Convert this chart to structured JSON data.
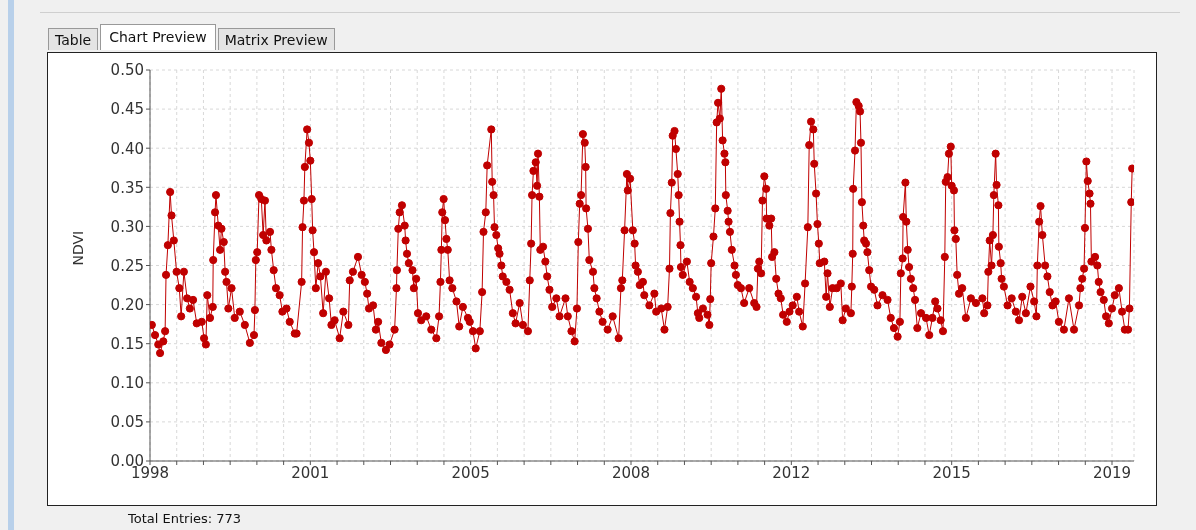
{
  "chart_data": {
    "type": "line",
    "ylabel": "NDVI",
    "annotations": [
      "Table",
      "Chart Preview",
      "Matrix Preview",
      "Total Entries: 773"
    ],
    "xlim": [
      1998,
      2019.48
    ],
    "xticks": [
      {
        "value": 1998,
        "label": "1998"
      },
      {
        "value": 1998.5833,
        "label": null
      },
      {
        "value": 1999.1667,
        "label": null
      },
      {
        "value": 1999.75,
        "label": null
      },
      {
        "value": 2000.3333,
        "label": null
      },
      {
        "value": 2000.9167,
        "label": null
      },
      {
        "value": 2001.5,
        "label": "2001"
      },
      {
        "value": 2002.0833,
        "label": null
      },
      {
        "value": 2002.6667,
        "label": null
      },
      {
        "value": 2003.25,
        "label": null
      },
      {
        "value": 2003.8333,
        "label": null
      },
      {
        "value": 2004.4167,
        "label": null
      },
      {
        "value": 2005,
        "label": "2005"
      },
      {
        "value": 2005.5833,
        "label": null
      },
      {
        "value": 2006.1667,
        "label": null
      },
      {
        "value": 2006.75,
        "label": null
      },
      {
        "value": 2007.3333,
        "label": null
      },
      {
        "value": 2007.9167,
        "label": null
      },
      {
        "value": 2008.5,
        "label": "2008"
      },
      {
        "value": 2009.0833,
        "label": null
      },
      {
        "value": 2009.6667,
        "label": null
      },
      {
        "value": 2010.25,
        "label": null
      },
      {
        "value": 2010.8333,
        "label": null
      },
      {
        "value": 2011.4167,
        "label": null
      },
      {
        "value": 2012,
        "label": "2012"
      },
      {
        "value": 2012.5833,
        "label": null
      },
      {
        "value": 2013.1667,
        "label": null
      },
      {
        "value": 2013.75,
        "label": null
      },
      {
        "value": 2014.3333,
        "label": null
      },
      {
        "value": 2014.9167,
        "label": null
      },
      {
        "value": 2015.5,
        "label": "2015"
      },
      {
        "value": 2016.0833,
        "label": null
      },
      {
        "value": 2016.6667,
        "label": null
      },
      {
        "value": 2017.25,
        "label": null
      },
      {
        "value": 2017.8333,
        "label": null
      },
      {
        "value": 2018.4167,
        "label": null
      },
      {
        "value": 2019,
        "label": "2019"
      }
    ],
    "ylim": [
      0,
      0.5
    ],
    "yticks": [
      {
        "value": 0,
        "label": "0.00"
      },
      {
        "value": 0.05,
        "label": "0.05"
      },
      {
        "value": 0.1,
        "label": "0.10"
      },
      {
        "value": 0.15,
        "label": "0.15"
      },
      {
        "value": 0.2,
        "label": "0.20"
      },
      {
        "value": 0.25,
        "label": "0.25"
      },
      {
        "value": 0.3,
        "label": "0.30"
      },
      {
        "value": 0.35,
        "label": "0.35"
      },
      {
        "value": 0.4,
        "label": "0.40"
      },
      {
        "value": 0.45,
        "label": "0.45"
      },
      {
        "value": 0.5,
        "label": "0.50"
      }
    ],
    "grid": true,
    "marker": "circle",
    "line_style": "solid",
    "series": [
      {
        "color": "#c00000",
        "x": [
          1998.04,
          1998.11,
          1998.18,
          1998.22,
          1998.29,
          1998.33,
          1998.35,
          1998.39,
          1998.44,
          1998.47,
          1998.52,
          1998.58,
          1998.64,
          1998.68,
          1998.74,
          1998.81,
          1998.87,
          1998.94,
          1999.02,
          1999.13,
          1999.18,
          1999.22,
          1999.25,
          1999.31,
          1999.37,
          1999.38,
          1999.42,
          1999.44,
          1999.49,
          1999.53,
          1999.56,
          1999.61,
          1999.64,
          1999.67,
          1999.71,
          1999.78,
          1999.85,
          1999.96,
          2000.07,
          2000.18,
          2000.27,
          2000.29,
          2000.31,
          2000.34,
          2000.38,
          2000.43,
          2000.47,
          2000.51,
          2000.54,
          2000.62,
          2000.65,
          2000.7,
          2000.75,
          2000.83,
          2000.89,
          2000.98,
          2001.05,
          2001.16,
          2001.2,
          2001.31,
          2001.33,
          2001.36,
          2001.38,
          2001.43,
          2001.47,
          2001.5,
          2001.53,
          2001.55,
          2001.58,
          2001.62,
          2001.67,
          2001.72,
          2001.78,
          2001.84,
          2001.91,
          2001.96,
          2002.03,
          2002.14,
          2002.22,
          2002.33,
          2002.36,
          2002.43,
          2002.54,
          2002.62,
          2002.69,
          2002.74,
          2002.78,
          2002.87,
          2002.93,
          2002.98,
          2003.05,
          2003.15,
          2003.23,
          2003.34,
          2003.38,
          2003.39,
          2003.42,
          2003.45,
          2003.5,
          2003.56,
          2003.58,
          2003.61,
          2003.65,
          2003.73,
          2003.76,
          2003.81,
          2003.85,
          2003.92,
          2004.03,
          2004.14,
          2004.25,
          2004.31,
          2004.34,
          2004.36,
          2004.38,
          2004.41,
          2004.44,
          2004.47,
          2004.5,
          2004.54,
          2004.6,
          2004.69,
          2004.75,
          2004.83,
          2004.94,
          2004.98,
          2005.05,
          2005.11,
          2005.2,
          2005.25,
          2005.28,
          2005.33,
          2005.36,
          2005.45,
          2005.47,
          2005.5,
          2005.52,
          2005.56,
          2005.6,
          2005.63,
          2005.67,
          2005.7,
          2005.78,
          2005.85,
          2005.92,
          2005.98,
          2006.07,
          2006.14,
          2006.25,
          2006.29,
          2006.32,
          2006.34,
          2006.37,
          2006.42,
          2006.45,
          2006.47,
          2006.5,
          2006.52,
          2006.58,
          2006.63,
          2006.67,
          2006.72,
          2006.78,
          2006.87,
          2006.94,
          2007.07,
          2007.12,
          2007.2,
          2007.27,
          2007.32,
          2007.35,
          2007.38,
          2007.41,
          2007.45,
          2007.49,
          2007.51,
          2007.52,
          2007.56,
          2007.59,
          2007.67,
          2007.7,
          2007.75,
          2007.81,
          2007.88,
          2007.99,
          2008.1,
          2008.23,
          2008.28,
          2008.31,
          2008.36,
          2008.41,
          2008.43,
          2008.48,
          2008.54,
          2008.58,
          2008.6,
          2008.65,
          2008.69,
          2008.76,
          2008.79,
          2008.9,
          2009.01,
          2009.05,
          2009.16,
          2009.23,
          2009.3,
          2009.34,
          2009.36,
          2009.39,
          2009.41,
          2009.45,
          2009.48,
          2009.52,
          2009.54,
          2009.56,
          2009.58,
          2009.59,
          2009.63,
          2009.72,
          2009.78,
          2009.85,
          2009.92,
          2009.96,
          2009.99,
          2010.07,
          2010.17,
          2010.21,
          2010.23,
          2010.25,
          2010.3,
          2010.34,
          2010.37,
          2010.4,
          2010.44,
          2010.47,
          2010.5,
          2010.54,
          2010.56,
          2010.57,
          2010.61,
          2010.63,
          2010.66,
          2010.7,
          2010.76,
          2010.79,
          2010.83,
          2010.9,
          2010.97,
          2011.08,
          2011.19,
          2011.24,
          2011.27,
          2011.3,
          2011.34,
          2011.37,
          2011.41,
          2011.45,
          2011.46,
          2011.52,
          2011.56,
          2011.58,
          2011.63,
          2011.67,
          2011.72,
          2011.77,
          2011.82,
          2011.9,
          2011.96,
          2012.03,
          2012.12,
          2012.17,
          2012.25,
          2012.3,
          2012.36,
          2012.39,
          2012.43,
          2012.48,
          2012.5,
          2012.54,
          2012.57,
          2012.6,
          2012.62,
          2012.72,
          2012.76,
          2012.79,
          2012.84,
          2012.9,
          2012.99,
          2013.08,
          2013.12,
          2013.19,
          2013.3,
          2013.32,
          2013.34,
          2013.35,
          2013.39,
          2013.42,
          2013.47,
          2013.5,
          2013.52,
          2013.54,
          2013.57,
          2013.59,
          2013.63,
          2013.66,
          2013.7,
          2013.74,
          2013.81,
          2013.88,
          2013.99,
          2014.1,
          2014.17,
          2014.24,
          2014.32,
          2014.37,
          2014.39,
          2014.43,
          2014.44,
          2014.49,
          2014.51,
          2014.54,
          2014.57,
          2014.61,
          2014.66,
          2014.7,
          2014.75,
          2014.83,
          2014.94,
          2015.01,
          2015.08,
          2015.14,
          2015.19,
          2015.26,
          2015.31,
          2015.35,
          2015.37,
          2015.41,
          2015.44,
          2015.48,
          2015.5,
          2015.55,
          2015.56,
          2015.59,
          2015.62,
          2015.66,
          2015.73,
          2015.81,
          2015.92,
          2016.03,
          2016.17,
          2016.21,
          2016.28,
          2016.3,
          2016.33,
          2016.37,
          2016.4,
          2016.42,
          2016.46,
          2016.48,
          2016.52,
          2016.53,
          2016.57,
          2016.59,
          2016.64,
          2016.72,
          2016.81,
          2016.9,
          2016.97,
          2017.04,
          2017.12,
          2017.22,
          2017.3,
          2017.35,
          2017.37,
          2017.41,
          2017.44,
          2017.48,
          2017.54,
          2017.59,
          2017.64,
          2017.7,
          2017.77,
          2017.84,
          2017.95,
          2018.06,
          2018.17,
          2018.28,
          2018.31,
          2018.35,
          2018.39,
          2018.41,
          2018.44,
          2018.47,
          2018.51,
          2018.53,
          2018.55,
          2018.63,
          2018.68,
          2018.71,
          2018.75,
          2018.82,
          2018.87,
          2018.93,
          2019.0,
          2019.06,
          2019.15,
          2019.22,
          2019.28,
          2019.35,
          2019.38,
          2019.42,
          2019.44
        ],
        "values": [
          0.174,
          0.161,
          0.149,
          0.138,
          0.153,
          0.166,
          0.238,
          0.276,
          0.344,
          0.314,
          0.282,
          0.242,
          0.221,
          0.185,
          0.242,
          0.208,
          0.195,
          0.206,
          0.176,
          0.178,
          0.157,
          0.149,
          0.212,
          0.183,
          0.197,
          0.257,
          0.318,
          0.34,
          0.301,
          0.27,
          0.297,
          0.28,
          0.242,
          0.229,
          0.195,
          0.221,
          0.183,
          0.191,
          0.174,
          0.151,
          0.161,
          0.193,
          0.257,
          0.267,
          0.34,
          0.335,
          0.289,
          0.333,
          0.282,
          0.293,
          0.27,
          0.244,
          0.221,
          0.212,
          0.191,
          0.195,
          0.178,
          0.163,
          0.163,
          0.229,
          0.299,
          0.333,
          0.376,
          0.424,
          0.407,
          0.384,
          0.335,
          0.295,
          0.267,
          0.221,
          0.253,
          0.236,
          0.189,
          0.242,
          0.208,
          0.174,
          0.18,
          0.157,
          0.191,
          0.174,
          0.231,
          0.242,
          0.261,
          0.238,
          0.229,
          0.214,
          0.195,
          0.199,
          0.168,
          0.178,
          0.151,
          0.142,
          0.149,
          0.168,
          0.221,
          0.244,
          0.297,
          0.318,
          0.327,
          0.301,
          0.282,
          0.265,
          0.253,
          0.244,
          0.221,
          0.233,
          0.189,
          0.18,
          0.185,
          0.168,
          0.157,
          0.185,
          0.229,
          0.27,
          0.318,
          0.335,
          0.308,
          0.284,
          0.27,
          0.231,
          0.221,
          0.204,
          0.172,
          0.197,
          0.183,
          0.178,
          0.166,
          0.144,
          0.166,
          0.216,
          0.293,
          0.318,
          0.378,
          0.424,
          0.357,
          0.34,
          0.299,
          0.289,
          0.272,
          0.265,
          0.25,
          0.236,
          0.229,
          0.219,
          0.189,
          0.176,
          0.202,
          0.174,
          0.166,
          0.231,
          0.278,
          0.34,
          0.371,
          0.382,
          0.352,
          0.393,
          0.338,
          0.27,
          0.274,
          0.255,
          0.236,
          0.219,
          0.197,
          0.208,
          0.185,
          0.208,
          0.185,
          0.166,
          0.153,
          0.195,
          0.28,
          0.329,
          0.34,
          0.418,
          0.407,
          0.376,
          0.323,
          0.297,
          0.257,
          0.242,
          0.221,
          0.208,
          0.191,
          0.178,
          0.168,
          0.185,
          0.157,
          0.221,
          0.231,
          0.295,
          0.367,
          0.346,
          0.361,
          0.295,
          0.278,
          0.25,
          0.242,
          0.225,
          0.229,
          0.212,
          0.199,
          0.214,
          0.191,
          0.195,
          0.168,
          0.197,
          0.246,
          0.317,
          0.356,
          0.416,
          0.422,
          0.399,
          0.367,
          0.34,
          0.306,
          0.276,
          0.248,
          0.238,
          0.255,
          0.229,
          0.221,
          0.21,
          0.189,
          0.183,
          0.195,
          0.187,
          0.174,
          0.207,
          0.253,
          0.287,
          0.323,
          0.433,
          0.458,
          0.438,
          0.476,
          0.41,
          0.393,
          0.382,
          0.34,
          0.32,
          0.306,
          0.293,
          0.27,
          0.25,
          0.238,
          0.225,
          0.221,
          0.202,
          0.221,
          0.202,
          0.197,
          0.246,
          0.255,
          0.24,
          0.333,
          0.364,
          0.348,
          0.31,
          0.301,
          0.31,
          0.261,
          0.267,
          0.233,
          0.214,
          0.208,
          0.187,
          0.178,
          0.191,
          0.199,
          0.21,
          0.191,
          0.172,
          0.227,
          0.299,
          0.404,
          0.434,
          0.424,
          0.38,
          0.342,
          0.303,
          0.278,
          0.253,
          0.255,
          0.21,
          0.24,
          0.197,
          0.221,
          0.221,
          0.227,
          0.18,
          0.195,
          0.189,
          0.223,
          0.265,
          0.348,
          0.397,
          0.459,
          0.454,
          0.447,
          0.407,
          0.331,
          0.301,
          0.282,
          0.278,
          0.267,
          0.244,
          0.223,
          0.219,
          0.199,
          0.212,
          0.206,
          0.183,
          0.17,
          0.159,
          0.178,
          0.24,
          0.259,
          0.312,
          0.356,
          0.306,
          0.27,
          0.248,
          0.233,
          0.221,
          0.206,
          0.17,
          0.189,
          0.183,
          0.161,
          0.183,
          0.204,
          0.195,
          0.18,
          0.166,
          0.261,
          0.357,
          0.363,
          0.393,
          0.402,
          0.352,
          0.346,
          0.295,
          0.284,
          0.238,
          0.214,
          0.221,
          0.183,
          0.208,
          0.202,
          0.208,
          0.189,
          0.199,
          0.242,
          0.282,
          0.25,
          0.289,
          0.34,
          0.393,
          0.353,
          0.327,
          0.274,
          0.253,
          0.233,
          0.223,
          0.199,
          0.208,
          0.191,
          0.18,
          0.21,
          0.189,
          0.223,
          0.204,
          0.185,
          0.25,
          0.306,
          0.326,
          0.289,
          0.25,
          0.236,
          0.216,
          0.199,
          0.204,
          0.178,
          0.168,
          0.208,
          0.168,
          0.199,
          0.221,
          0.233,
          0.246,
          0.298,
          0.383,
          0.358,
          0.342,
          0.329,
          0.255,
          0.261,
          0.25,
          0.229,
          0.216,
          0.206,
          0.185,
          0.176,
          0.195,
          0.212,
          0.221,
          0.191,
          0.168,
          0.168,
          0.195,
          0.331,
          0.374
        ]
      }
    ]
  }
}
